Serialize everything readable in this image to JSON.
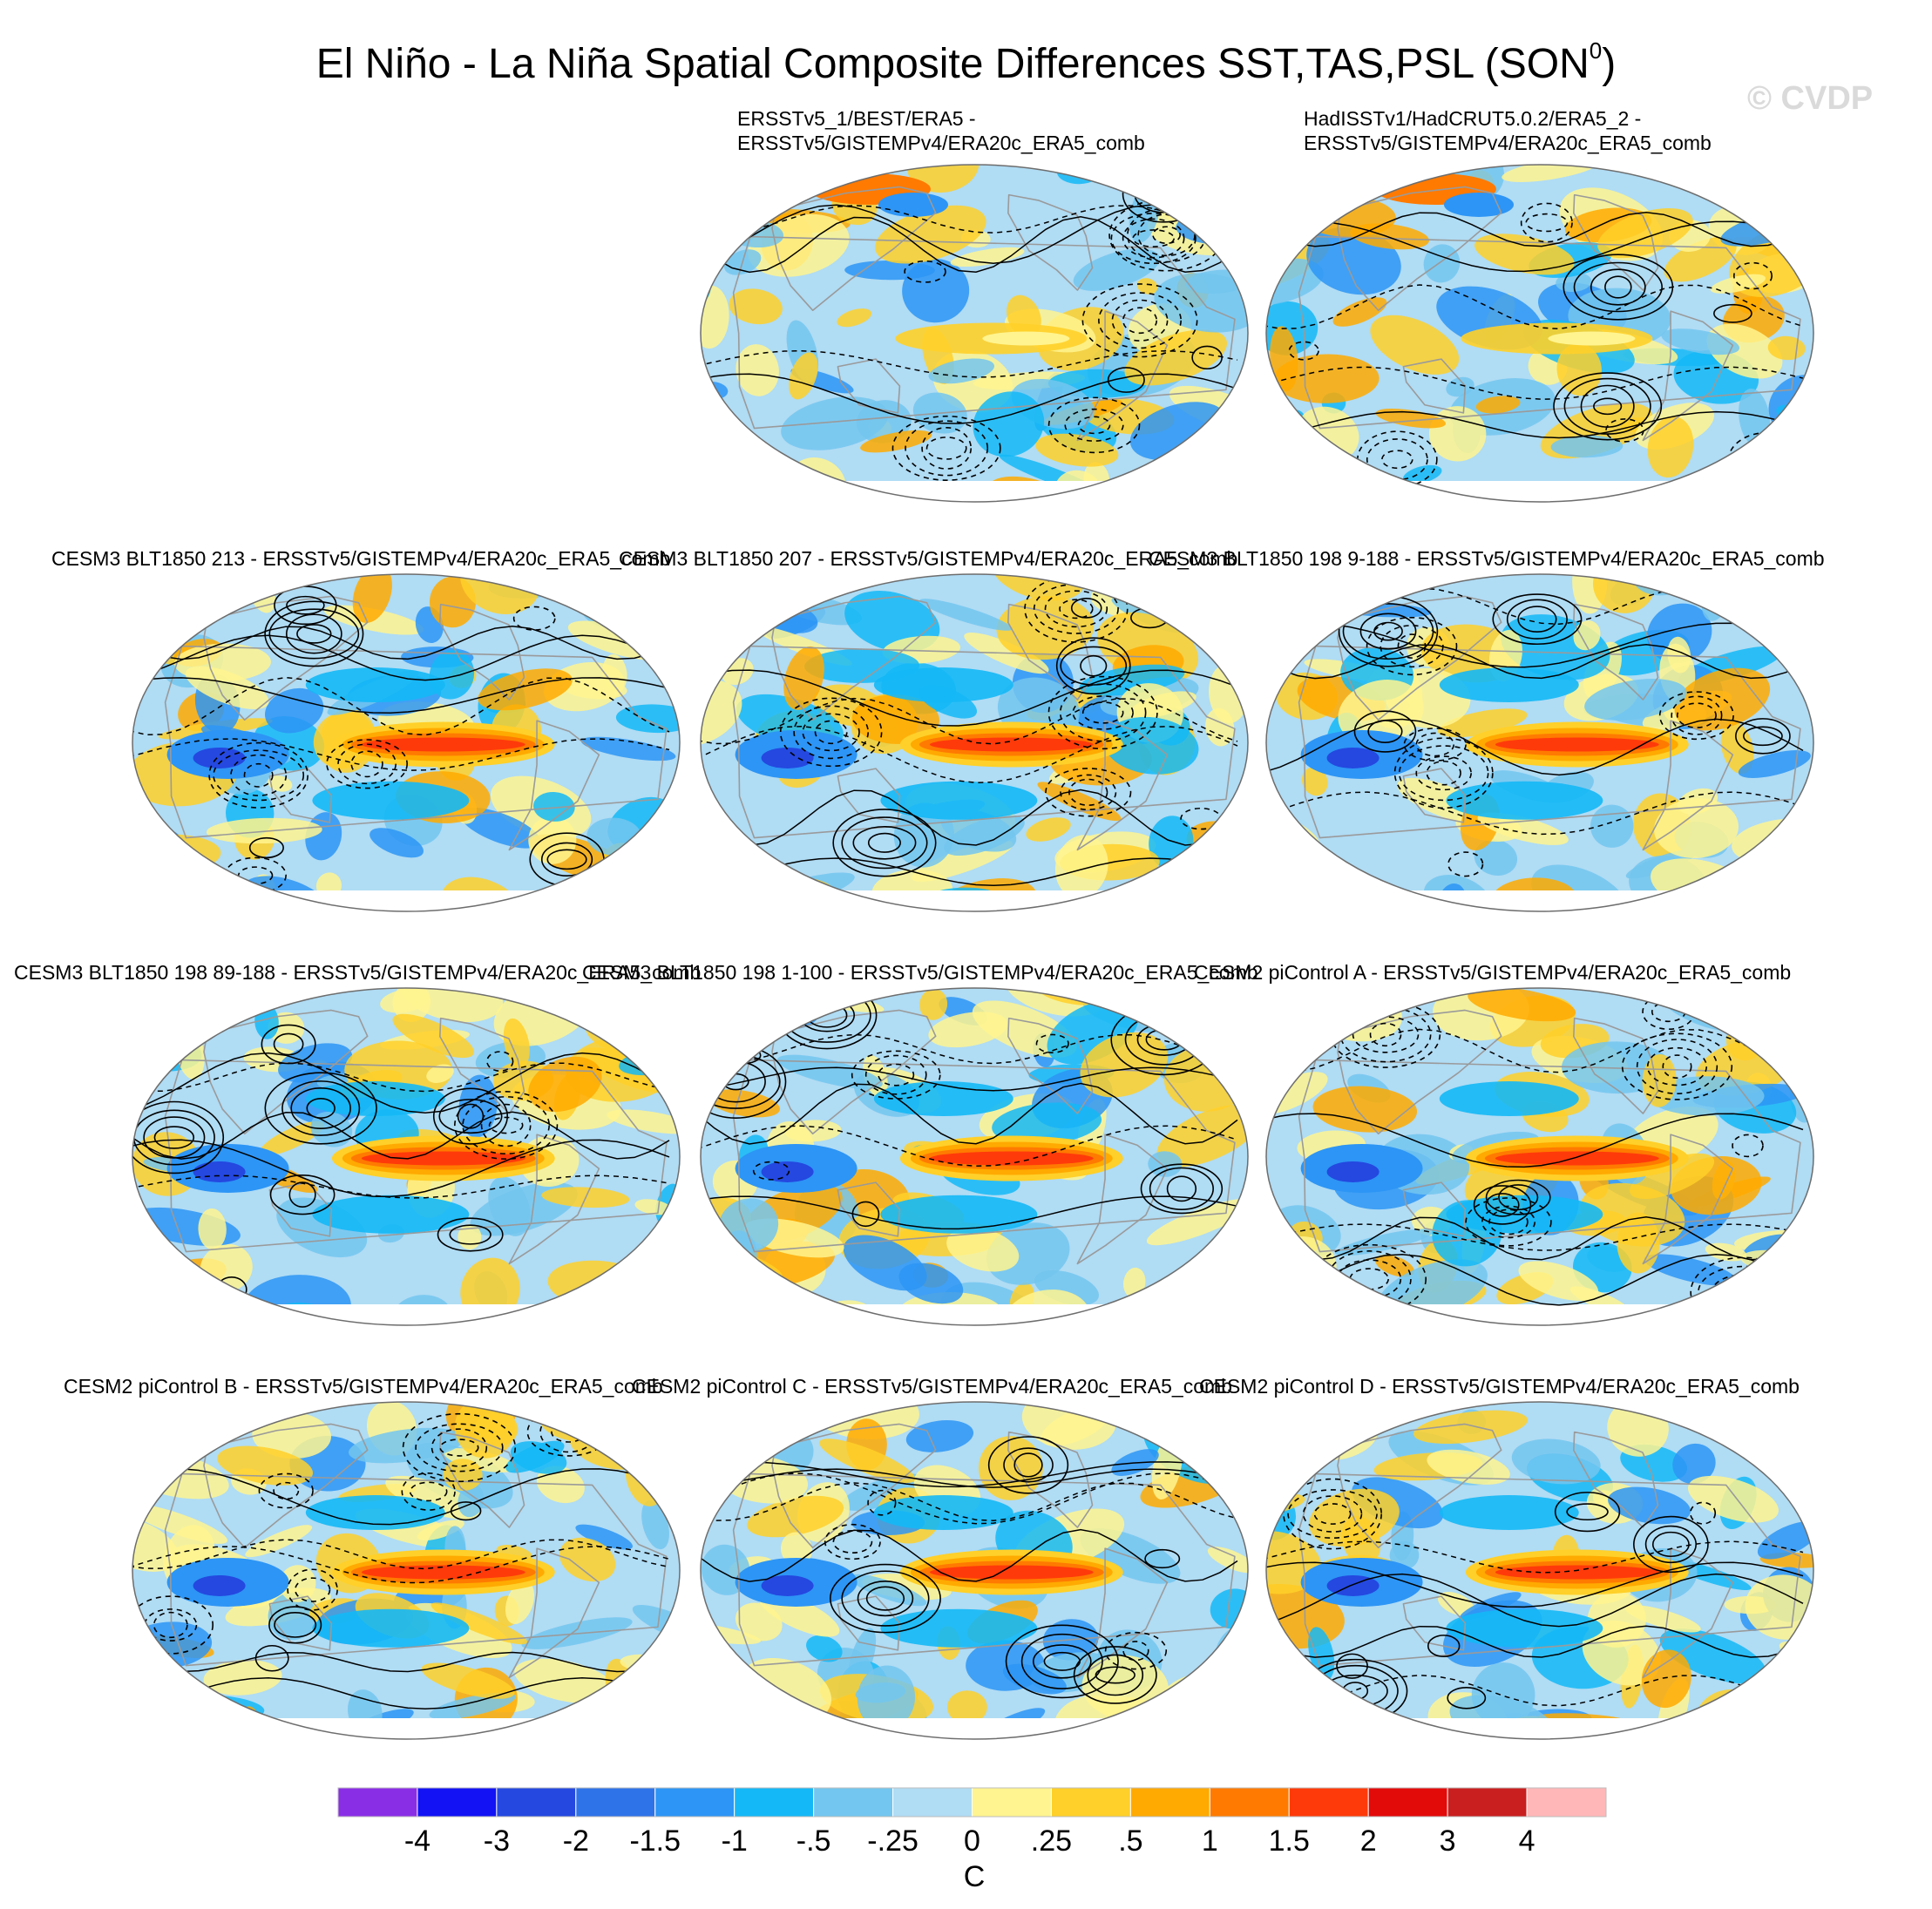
{
  "title": {
    "main": "El Niño - La Niña Spatial Composite Differences SST,TAS,PSL (SON",
    "superscript": "0",
    "close": ")"
  },
  "watermark": "© CVDP",
  "panels": [
    {
      "lines": [
        "ERSSTv5_1/BEST/ERA5 -",
        "ERSSTv5/GISTEMPv4/ERA20c_ERA5_comb"
      ],
      "pattern": "obs1"
    },
    {
      "lines": [
        "HadISSTv1/HadCRUT5.0.2/ERA5_2 -",
        "ERSSTv5/GISTEMPv4/ERA20c_ERA5_comb"
      ],
      "pattern": "obs2"
    },
    {
      "lines": [
        "CESM3 BLT1850 213 - ERSSTv5/GISTEMPv4/ERA20c_ERA5_comb"
      ],
      "pattern": "model"
    },
    {
      "lines": [
        "CESM3 BLT1850 207 - ERSSTv5/GISTEMPv4/ERA20c_ERA5_comb"
      ],
      "pattern": "model"
    },
    {
      "lines": [
        "CESM3 BLT1850 198 9-188 - ERSSTv5/GISTEMPv4/ERA20c_ERA5_comb"
      ],
      "pattern": "model"
    },
    {
      "lines": [
        "CESM3 BLT1850 198 89-188 - ERSSTv5/GISTEMPv4/ERA20c_ERA5_comb"
      ],
      "pattern": "model"
    },
    {
      "lines": [
        "CESM3 BLT1850 198 1-100 - ERSSTv5/GISTEMPv4/ERA20c_ERA5_comb"
      ],
      "pattern": "model"
    },
    {
      "lines": [
        "CESM2 piControl A - ERSSTv5/GISTEMPv4/ERA20c_ERA5_comb"
      ],
      "pattern": "model"
    },
    {
      "lines": [
        "CESM2 piControl B - ERSSTv5/GISTEMPv4/ERA20c_ERA5_comb"
      ],
      "pattern": "model"
    },
    {
      "lines": [
        "CESM2 piControl C - ERSSTv5/GISTEMPv4/ERA20c_ERA5_comb"
      ],
      "pattern": "model"
    },
    {
      "lines": [
        "CESM2 piControl D - ERSSTv5/GISTEMPv4/ERA20c_ERA5_comb"
      ],
      "pattern": "model"
    }
  ],
  "colorbar": {
    "unit": "C",
    "labels": [
      "-4",
      "-3",
      "-2",
      "-1.5",
      "-1",
      "-.5",
      "-.25",
      "0",
      ".25",
      ".5",
      "1",
      "1.5",
      "2",
      "3",
      "4"
    ],
    "colors": [
      "#8a2ee6",
      "#1212f5",
      "#2448e0",
      "#2f73e8",
      "#2d95f5",
      "#14b8f6",
      "#73c6ef",
      "#b0dcf4",
      "#fff48f",
      "#ffd029",
      "#ffaa00",
      "#ff7a00",
      "#ff3a0a",
      "#e30a0a",
      "#c91f1f",
      "#ffb7b7"
    ]
  }
}
